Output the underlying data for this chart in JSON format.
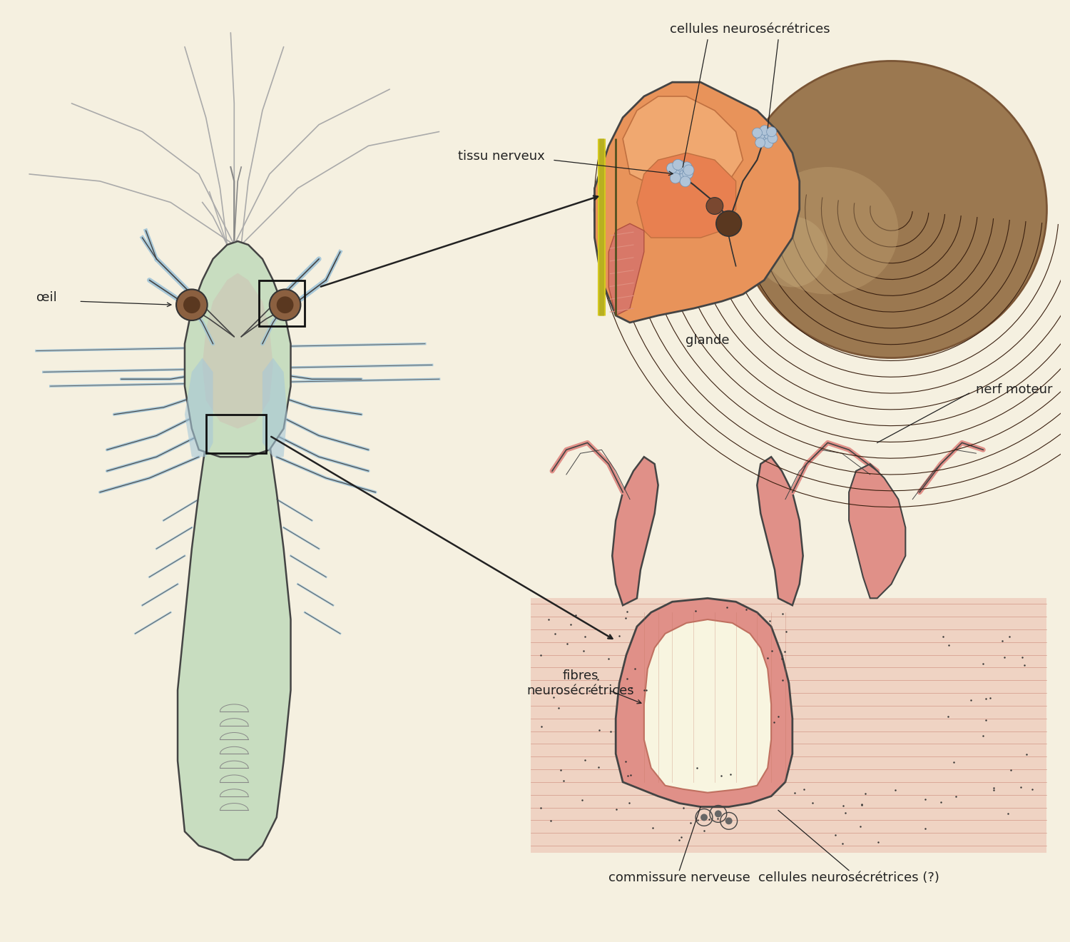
{
  "background_color": "#f5f0e0",
  "labels": {
    "cellules_neurosecrices": "cellules neurosécrétrices",
    "tissu_nerveux": "tissu nerveux",
    "glande": "glande",
    "nerf_moteur": "nerf moteur",
    "fibres_neurosecrices": "fibres\nneurosécrétrices",
    "commissure_nerveuse": "commissure nerveuse",
    "cellules_neurosecrices2": "cellules neurosécrétrices (?)",
    "oeil": "œil"
  },
  "colors": {
    "bg": "#f5f0e0",
    "shrimp_body_green": "#c8ddc0",
    "shrimp_body_blue": "#a8c8d8",
    "shrimp_outline": "#444444",
    "eye_brown": "#8b6040",
    "eye_dark": "#5a3820",
    "brain_orange": "#e8935a",
    "brain_light": "#f0a870",
    "brain_dark": "#d07040",
    "compound_eye_brown": "#9b7850",
    "compound_eye_dark": "#7a5535",
    "yellow_strip": "#d4c820",
    "nerve_cluster": "#b0c4d8",
    "nerve_cluster_edge": "#7090b0",
    "muscle_pink": "#e09080",
    "muscle_stripe": "#c07060",
    "ganglion_dark": "#5a3820",
    "commissure_pink": "#d88880",
    "commissure_fill": "#e09088",
    "lumen_cream": "#f8f5e0",
    "fiber_pink": "#c07060",
    "text_color": "#222222"
  },
  "font_size": 13
}
